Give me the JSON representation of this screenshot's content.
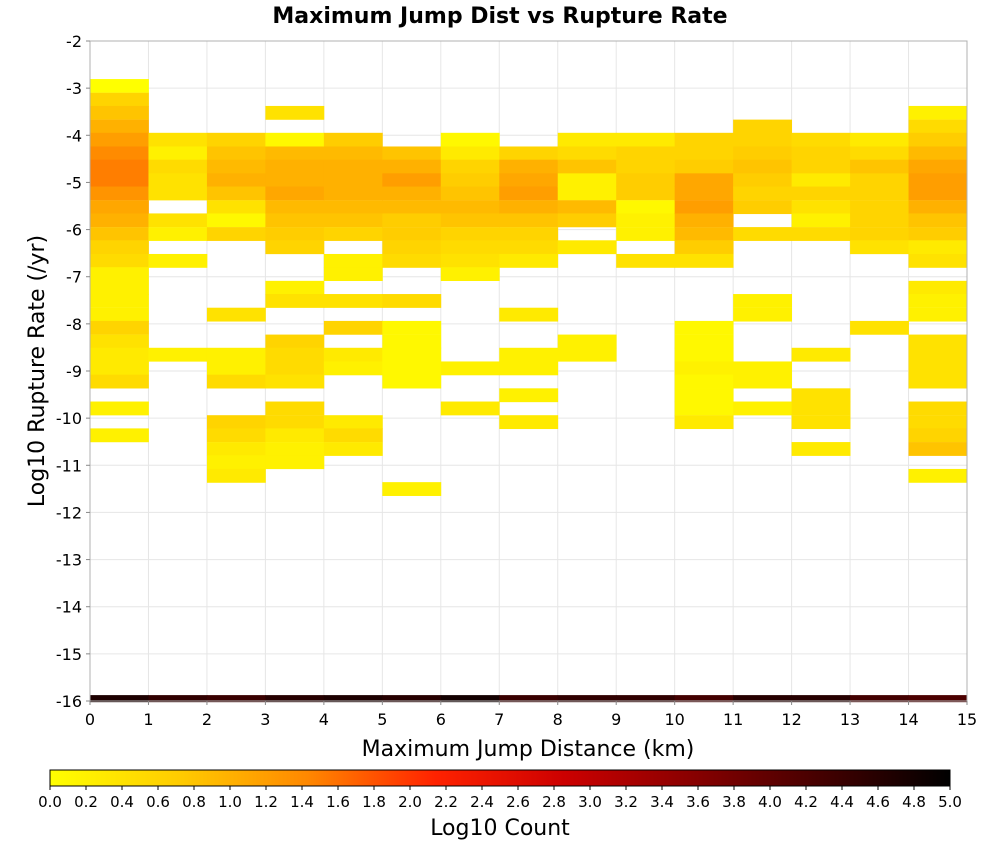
{
  "chart_data": {
    "type": "heatmap",
    "title": "Maximum Jump Dist vs Rupture Rate",
    "xlabel": "Maximum Jump Distance (km)",
    "ylabel": "Log10 Rupture Rate (/yr)",
    "xlim": [
      0,
      15
    ],
    "ylim": [
      -16,
      -2
    ],
    "x_ticks": [
      "0",
      "1",
      "2",
      "3",
      "4",
      "5",
      "6",
      "7",
      "8",
      "9",
      "10",
      "11",
      "12",
      "13",
      "14",
      "15"
    ],
    "y_ticks": [
      "-2",
      "-3",
      "-4",
      "-5",
      "-6",
      "-7",
      "-8",
      "-9",
      "-10",
      "-11",
      "-12",
      "-13",
      "-14",
      "-15",
      "-16"
    ],
    "grid": true,
    "bin_width_x": 1,
    "bin_height_y": 0.285,
    "colorbar": {
      "label": "Log10 Count",
      "min": 0.0,
      "max": 5.0,
      "ticks": [
        "0.0",
        "0.2",
        "0.4",
        "0.6",
        "0.8",
        "1.0",
        "1.2",
        "1.4",
        "1.6",
        "1.8",
        "2.0",
        "2.2",
        "2.4",
        "2.6",
        "2.8",
        "3.0",
        "3.2",
        "3.4",
        "3.6",
        "3.8",
        "4.0",
        "4.2",
        "4.4",
        "4.6",
        "4.8",
        "5.0"
      ],
      "colors": [
        "#ffff00",
        "#ffcc00",
        "#ff8800",
        "#ff2200",
        "#cc0000",
        "#880000",
        "#440000",
        "#000000"
      ]
    },
    "cells": [
      [
        0,
        -2.95,
        0.0
      ],
      [
        0,
        -3.24,
        0.6
      ],
      [
        0,
        -3.52,
        0.8
      ],
      [
        0,
        -3.81,
        1.0
      ],
      [
        0,
        -4.09,
        1.2
      ],
      [
        0,
        -4.38,
        1.4
      ],
      [
        0,
        -4.66,
        1.5
      ],
      [
        0,
        -4.95,
        1.5
      ],
      [
        0,
        -5.23,
        1.3
      ],
      [
        0,
        -5.52,
        1.1
      ],
      [
        0,
        -5.8,
        1.0
      ],
      [
        0,
        -6.09,
        0.8
      ],
      [
        0,
        -6.37,
        0.6
      ],
      [
        0,
        -6.66,
        0.5
      ],
      [
        0,
        -6.94,
        0.2
      ],
      [
        0,
        -7.23,
        0.2
      ],
      [
        0,
        -7.51,
        0.2
      ],
      [
        0,
        -7.8,
        0.2
      ],
      [
        0,
        -8.08,
        0.6
      ],
      [
        0,
        -8.37,
        0.4
      ],
      [
        0,
        -8.65,
        0.3
      ],
      [
        0,
        -8.94,
        0.3
      ],
      [
        0,
        -9.22,
        0.5
      ],
      [
        0,
        -9.79,
        0.2
      ],
      [
        0,
        -10.36,
        0.2
      ],
      [
        1,
        -4.09,
        0.4
      ],
      [
        1,
        -4.38,
        0.2
      ],
      [
        1,
        -4.66,
        0.5
      ],
      [
        1,
        -4.95,
        0.4
      ],
      [
        1,
        -5.23,
        0.4
      ],
      [
        1,
        -5.8,
        0.4
      ],
      [
        1,
        -6.09,
        0.2
      ],
      [
        1,
        -6.66,
        0.2
      ],
      [
        1,
        -8.65,
        0.2
      ],
      [
        2,
        -4.09,
        0.6
      ],
      [
        2,
        -4.38,
        0.8
      ],
      [
        2,
        -4.66,
        0.9
      ],
      [
        2,
        -4.95,
        1.0
      ],
      [
        2,
        -5.23,
        0.8
      ],
      [
        2,
        -5.52,
        0.4
      ],
      [
        2,
        -5.8,
        0.1
      ],
      [
        2,
        -6.09,
        0.6
      ],
      [
        2,
        -7.8,
        0.4
      ],
      [
        2,
        -8.65,
        0.2
      ],
      [
        2,
        -8.94,
        0.2
      ],
      [
        2,
        -9.22,
        0.5
      ],
      [
        2,
        -10.08,
        0.6
      ],
      [
        2,
        -10.36,
        0.5
      ],
      [
        2,
        -10.65,
        0.3
      ],
      [
        2,
        -10.93,
        0.2
      ],
      [
        2,
        -11.22,
        0.3
      ],
      [
        3,
        -3.52,
        0.4
      ],
      [
        3,
        -4.09,
        0.1
      ],
      [
        3,
        -4.38,
        0.9
      ],
      [
        3,
        -4.66,
        1.0
      ],
      [
        3,
        -4.95,
        1.0
      ],
      [
        3,
        -5.23,
        1.1
      ],
      [
        3,
        -5.52,
        0.9
      ],
      [
        3,
        -5.8,
        0.8
      ],
      [
        3,
        -6.09,
        0.7
      ],
      [
        3,
        -6.37,
        0.6
      ],
      [
        3,
        -7.23,
        0.2
      ],
      [
        3,
        -7.51,
        0.4
      ],
      [
        3,
        -8.37,
        0.6
      ],
      [
        3,
        -8.65,
        0.5
      ],
      [
        3,
        -8.94,
        0.5
      ],
      [
        3,
        -9.22,
        0.4
      ],
      [
        3,
        -9.79,
        0.5
      ],
      [
        3,
        -10.08,
        0.5
      ],
      [
        3,
        -10.36,
        0.3
      ],
      [
        3,
        -10.65,
        0.2
      ],
      [
        3,
        -10.93,
        0.2
      ],
      [
        4,
        -4.09,
        0.7
      ],
      [
        4,
        -4.38,
        0.9
      ],
      [
        4,
        -4.66,
        1.0
      ],
      [
        4,
        -4.95,
        1.0
      ],
      [
        4,
        -5.23,
        1.0
      ],
      [
        4,
        -5.52,
        0.9
      ],
      [
        4,
        -5.8,
        0.8
      ],
      [
        4,
        -6.09,
        0.6
      ],
      [
        4,
        -6.66,
        0.2
      ],
      [
        4,
        -6.94,
        0.2
      ],
      [
        4,
        -7.51,
        0.4
      ],
      [
        4,
        -8.08,
        0.6
      ],
      [
        4,
        -8.65,
        0.3
      ],
      [
        4,
        -8.94,
        0.2
      ],
      [
        4,
        -10.08,
        0.3
      ],
      [
        4,
        -10.36,
        0.5
      ],
      [
        4,
        -10.65,
        0.3
      ],
      [
        5,
        -4.38,
        0.8
      ],
      [
        5,
        -4.66,
        1.0
      ],
      [
        5,
        -4.95,
        1.2
      ],
      [
        5,
        -5.23,
        1.0
      ],
      [
        5,
        -5.52,
        0.9
      ],
      [
        5,
        -5.8,
        0.7
      ],
      [
        5,
        -6.09,
        0.7
      ],
      [
        5,
        -6.37,
        0.6
      ],
      [
        5,
        -6.66,
        0.5
      ],
      [
        5,
        -7.51,
        0.5
      ],
      [
        5,
        -8.08,
        0.1
      ],
      [
        5,
        -8.37,
        0.1
      ],
      [
        5,
        -8.65,
        0.1
      ],
      [
        5,
        -8.94,
        0.1
      ],
      [
        5,
        -9.22,
        0.1
      ],
      [
        5,
        -11.5,
        0.2
      ],
      [
        6,
        -4.09,
        0.1
      ],
      [
        6,
        -4.38,
        0.3
      ],
      [
        6,
        -4.66,
        0.6
      ],
      [
        6,
        -4.95,
        0.7
      ],
      [
        6,
        -5.23,
        0.8
      ],
      [
        6,
        -5.52,
        0.9
      ],
      [
        6,
        -5.8,
        0.8
      ],
      [
        6,
        -6.09,
        0.6
      ],
      [
        6,
        -6.37,
        0.5
      ],
      [
        6,
        -6.66,
        0.4
      ],
      [
        6,
        -6.94,
        0.2
      ],
      [
        6,
        -8.94,
        0.2
      ],
      [
        6,
        -9.79,
        0.3
      ],
      [
        7,
        -4.38,
        0.6
      ],
      [
        7,
        -4.66,
        1.0
      ],
      [
        7,
        -4.95,
        1.1
      ],
      [
        7,
        -5.23,
        1.2
      ],
      [
        7,
        -5.52,
        1.0
      ],
      [
        7,
        -5.8,
        0.8
      ],
      [
        7,
        -6.09,
        0.6
      ],
      [
        7,
        -6.37,
        0.5
      ],
      [
        7,
        -6.66,
        0.3
      ],
      [
        7,
        -7.8,
        0.3
      ],
      [
        7,
        -8.65,
        0.2
      ],
      [
        7,
        -8.94,
        0.2
      ],
      [
        7,
        -9.51,
        0.2
      ],
      [
        7,
        -10.08,
        0.3
      ],
      [
        8,
        -4.09,
        0.3
      ],
      [
        8,
        -4.38,
        0.5
      ],
      [
        8,
        -4.66,
        0.8
      ],
      [
        8,
        -4.95,
        0.2
      ],
      [
        8,
        -5.23,
        0.2
      ],
      [
        8,
        -5.52,
        0.9
      ],
      [
        8,
        -5.8,
        0.7
      ],
      [
        8,
        -6.37,
        0.3
      ],
      [
        8,
        -8.37,
        0.2
      ],
      [
        8,
        -8.65,
        0.2
      ],
      [
        9,
        -4.09,
        0.3
      ],
      [
        9,
        -4.38,
        0.6
      ],
      [
        9,
        -4.66,
        0.6
      ],
      [
        9,
        -4.95,
        0.7
      ],
      [
        9,
        -5.23,
        0.7
      ],
      [
        9,
        -5.52,
        0.1
      ],
      [
        9,
        -5.8,
        0.2
      ],
      [
        9,
        -6.09,
        0.2
      ],
      [
        9,
        -6.66,
        0.4
      ],
      [
        10,
        -4.09,
        0.6
      ],
      [
        10,
        -4.38,
        0.6
      ],
      [
        10,
        -4.66,
        0.7
      ],
      [
        10,
        -4.95,
        1.1
      ],
      [
        10,
        -5.23,
        1.1
      ],
      [
        10,
        -5.52,
        1.2
      ],
      [
        10,
        -5.8,
        1.0
      ],
      [
        10,
        -6.09,
        0.9
      ],
      [
        10,
        -6.37,
        0.7
      ],
      [
        10,
        -6.66,
        0.4
      ],
      [
        10,
        -8.08,
        0.1
      ],
      [
        10,
        -8.37,
        0.1
      ],
      [
        10,
        -8.65,
        0.1
      ],
      [
        10,
        -8.94,
        0.2
      ],
      [
        10,
        -9.22,
        0.1
      ],
      [
        10,
        -9.51,
        0.1
      ],
      [
        10,
        -9.79,
        0.1
      ],
      [
        10,
        -10.08,
        0.3
      ],
      [
        11,
        -3.81,
        0.6
      ],
      [
        11,
        -4.09,
        0.6
      ],
      [
        11,
        -4.38,
        0.7
      ],
      [
        11,
        -4.66,
        0.8
      ],
      [
        11,
        -4.95,
        0.7
      ],
      [
        11,
        -5.23,
        0.6
      ],
      [
        11,
        -5.52,
        0.7
      ],
      [
        11,
        -6.09,
        0.5
      ],
      [
        11,
        -7.51,
        0.2
      ],
      [
        11,
        -7.8,
        0.2
      ],
      [
        11,
        -8.94,
        0.2
      ],
      [
        11,
        -9.22,
        0.2
      ],
      [
        11,
        -9.79,
        0.2
      ],
      [
        12,
        -4.09,
        0.5
      ],
      [
        12,
        -4.38,
        0.6
      ],
      [
        12,
        -4.66,
        0.6
      ],
      [
        12,
        -4.95,
        0.3
      ],
      [
        12,
        -5.23,
        0.6
      ],
      [
        12,
        -5.52,
        0.4
      ],
      [
        12,
        -5.8,
        0.2
      ],
      [
        12,
        -6.09,
        0.5
      ],
      [
        12,
        -8.65,
        0.3
      ],
      [
        12,
        -9.51,
        0.4
      ],
      [
        12,
        -9.79,
        0.4
      ],
      [
        12,
        -10.08,
        0.4
      ],
      [
        12,
        -10.65,
        0.3
      ],
      [
        13,
        -4.09,
        0.3
      ],
      [
        13,
        -4.38,
        0.5
      ],
      [
        13,
        -4.66,
        0.8
      ],
      [
        13,
        -4.95,
        0.6
      ],
      [
        13,
        -5.23,
        0.6
      ],
      [
        13,
        -5.52,
        0.6
      ],
      [
        13,
        -5.8,
        0.6
      ],
      [
        13,
        -6.09,
        0.6
      ],
      [
        13,
        -6.37,
        0.4
      ],
      [
        13,
        -8.08,
        0.4
      ],
      [
        14,
        -3.52,
        0.2
      ],
      [
        14,
        -3.81,
        0.5
      ],
      [
        14,
        -4.09,
        0.7
      ],
      [
        14,
        -4.38,
        0.9
      ],
      [
        14,
        -4.66,
        1.1
      ],
      [
        14,
        -4.95,
        1.2
      ],
      [
        14,
        -5.23,
        1.2
      ],
      [
        14,
        -5.52,
        1.0
      ],
      [
        14,
        -5.8,
        0.8
      ],
      [
        14,
        -6.09,
        0.7
      ],
      [
        14,
        -6.37,
        0.3
      ],
      [
        14,
        -6.66,
        0.4
      ],
      [
        14,
        -7.23,
        0.3
      ],
      [
        14,
        -7.51,
        0.2
      ],
      [
        14,
        -7.8,
        0.2
      ],
      [
        14,
        -8.37,
        0.4
      ],
      [
        14,
        -8.65,
        0.4
      ],
      [
        14,
        -8.94,
        0.4
      ],
      [
        14,
        -9.22,
        0.4
      ],
      [
        14,
        -9.79,
        0.5
      ],
      [
        14,
        -10.08,
        0.5
      ],
      [
        14,
        -10.36,
        0.6
      ],
      [
        14,
        -10.65,
        0.8
      ],
      [
        14,
        -11.22,
        0.2
      ]
    ],
    "bottom_row": {
      "y": -15.95,
      "height": 0.15,
      "values": [
        4.7,
        4.5,
        4.4,
        4.6,
        4.7,
        4.6,
        4.8,
        4.4,
        4.5,
        4.5,
        4.3,
        4.6,
        4.6,
        4.3,
        4.2
      ]
    }
  }
}
